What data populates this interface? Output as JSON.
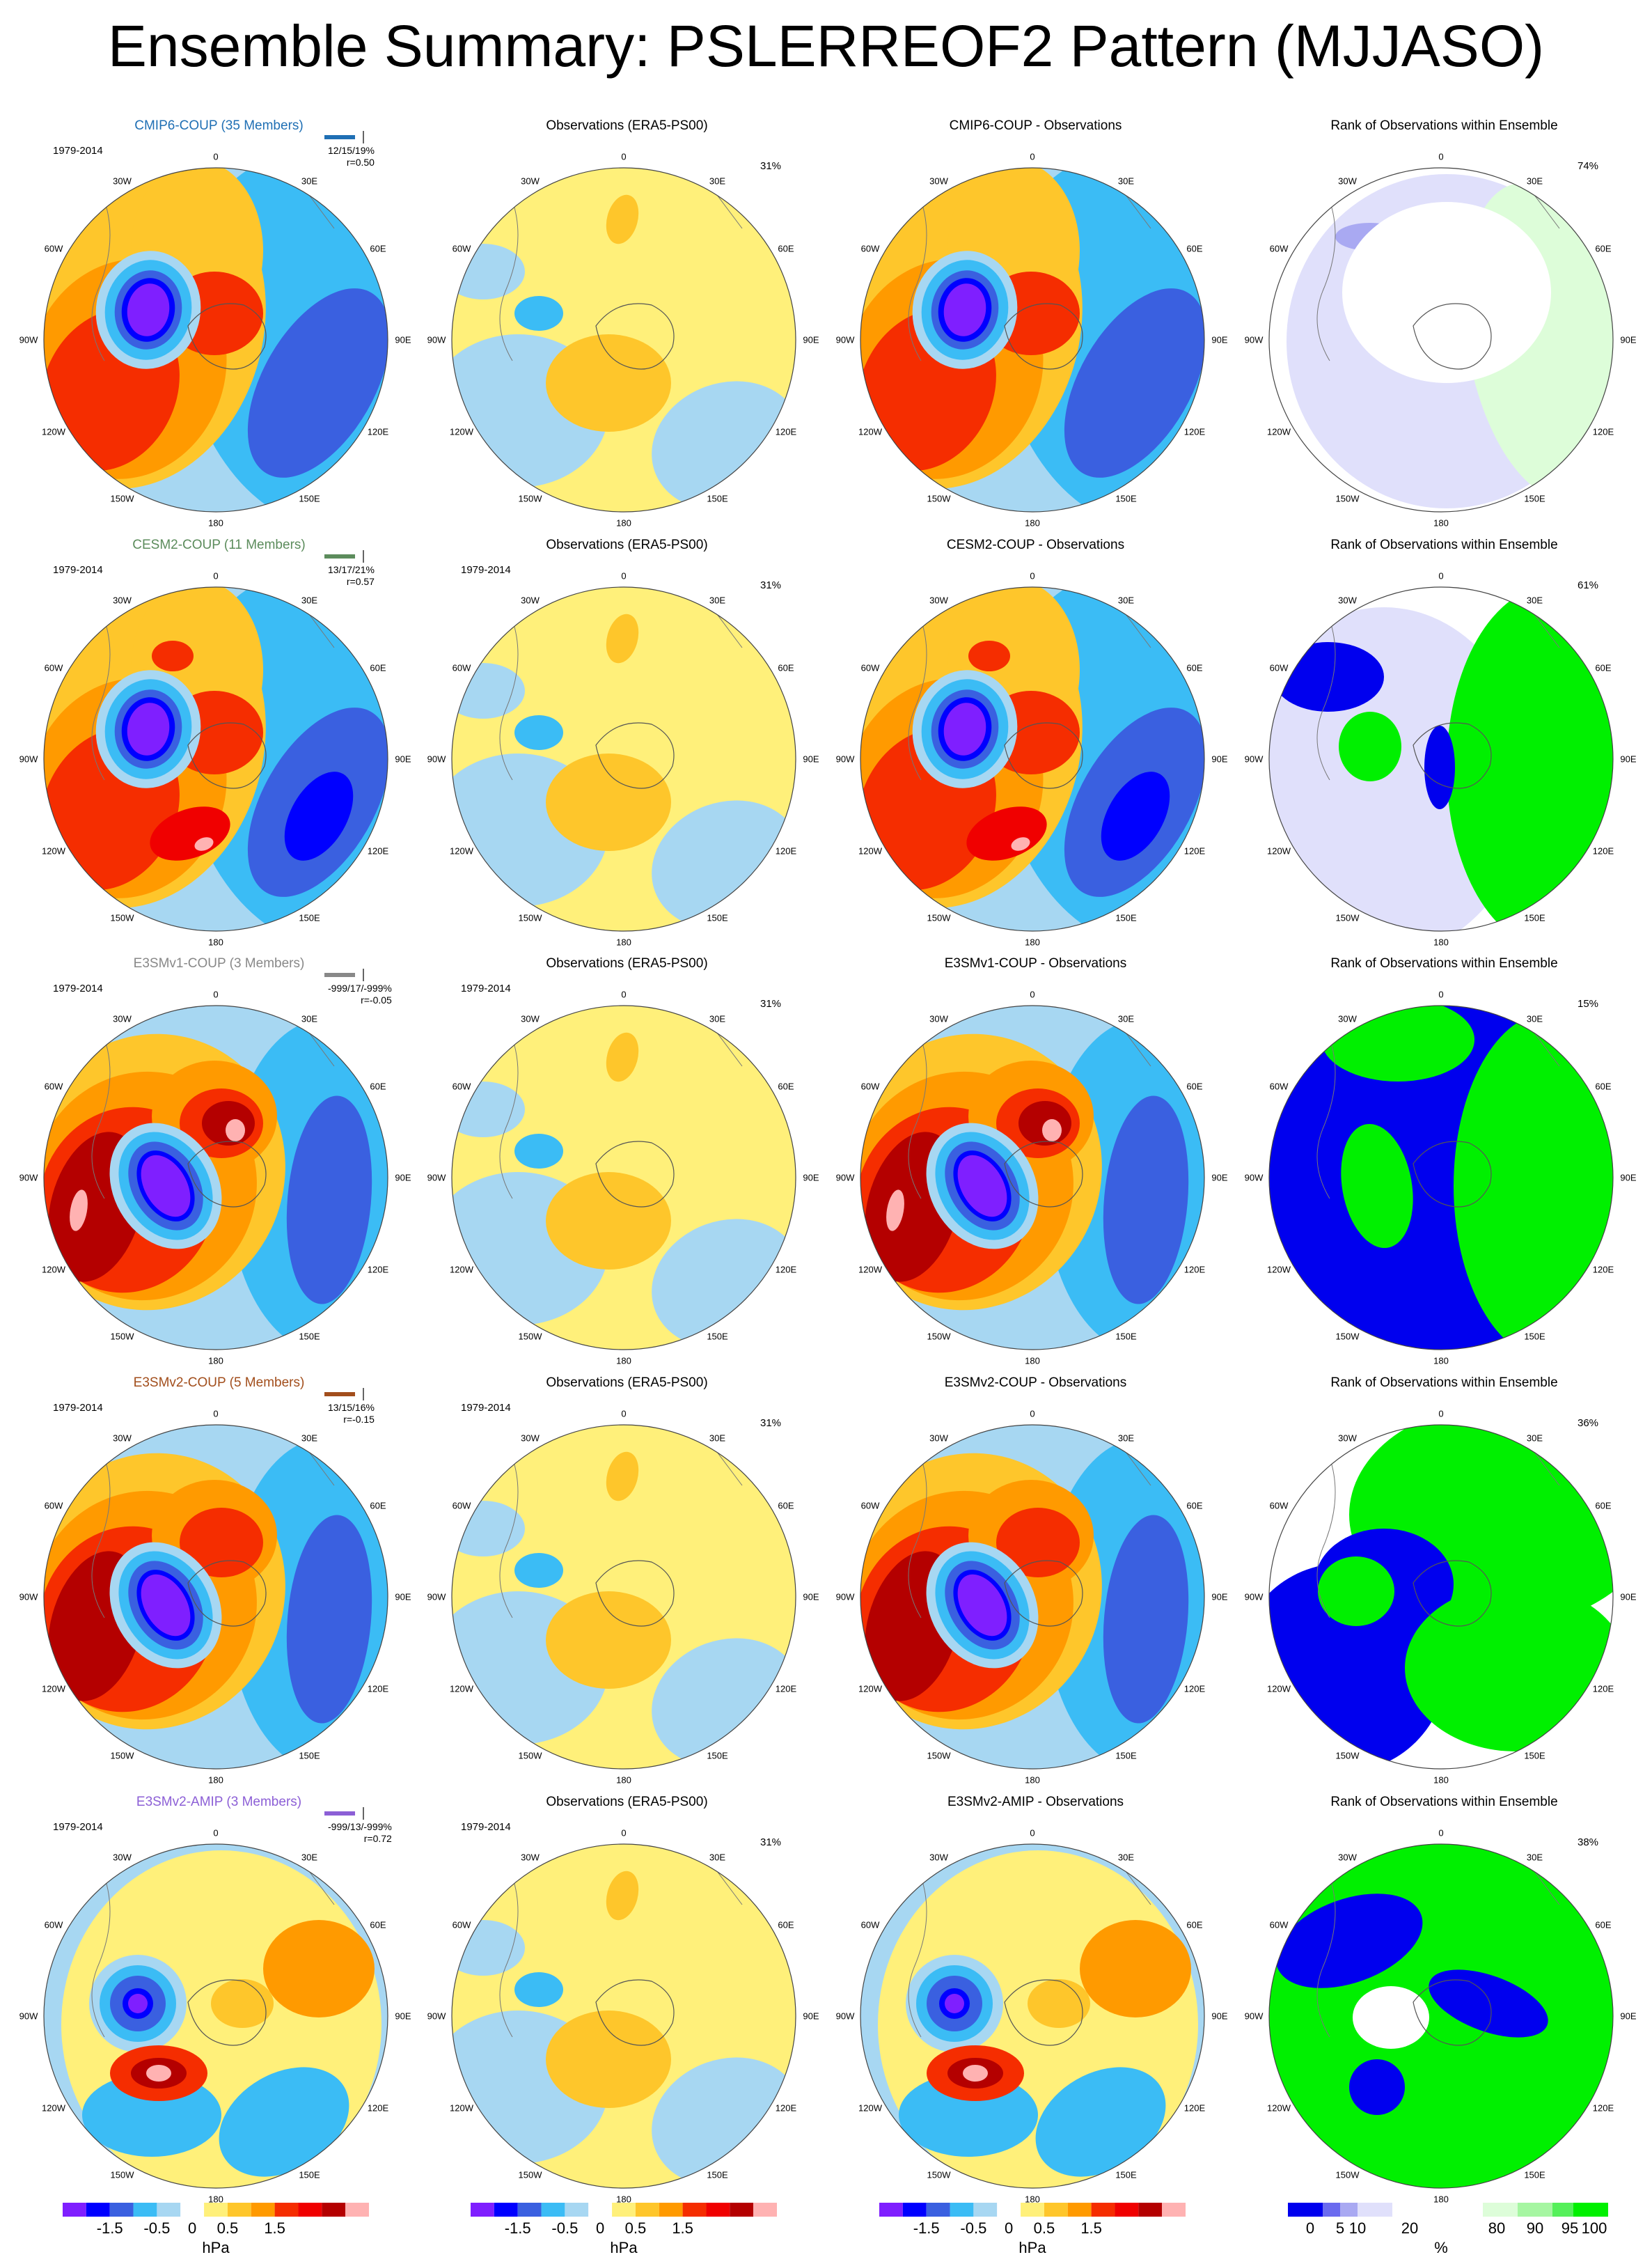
{
  "title": "Ensemble Summary: PSLERREOF2 Pattern (MJJASO)",
  "colors": {
    "levels": [
      "#7f1fff",
      "#0000ff",
      "#3a60e0",
      "#3bbcf5",
      "#a7d7f2",
      "#ffffff",
      "#fff07a",
      "#fec62b",
      "#ff9a00",
      "#f52d00",
      "#f00000",
      "#b40000",
      "#ffb2b2"
    ],
    "rank": [
      "#0000ee",
      "#6b6bef",
      "#a9a9f2",
      "#e0e0fb",
      "#ffffff",
      "#ddfdd9",
      "#a6f6a2",
      "#55f05a",
      "#00f000"
    ],
    "model_title_colors": {
      "CMIP6-COUP": "#1f6fb4",
      "CESM2-COUP": "#5c8c5c",
      "E3SMv1-COUP": "#888888",
      "E3SMv2-COUP": "#a24e1c",
      "E3SMv2-AMIP": "#8c5fd6"
    }
  },
  "longitude_labels": [
    "0",
    "30E",
    "60E",
    "90E",
    "120E",
    "150E",
    "180",
    "150W",
    "120W",
    "90W",
    "60W",
    "30W"
  ],
  "rows": [
    {
      "model_panel": {
        "title": "CMIP6-COUP (35 Members)",
        "period": "1979-2014",
        "stats_line1": "12/15/19%",
        "stats_line2": "r=0.50"
      },
      "obs_panel": {
        "title": "Observations (ERA5-PS00)",
        "pct": "31%"
      },
      "diff_panel": {
        "title": "CMIP6-COUP - Observations"
      },
      "rank_panel": {
        "title": "Rank of Observations within Ensemble",
        "pct": "74%"
      }
    },
    {
      "model_panel": {
        "title": "CESM2-COUP (11 Members)",
        "period": "1979-2014",
        "stats_line1": "13/17/21%",
        "stats_line2": "r=0.57"
      },
      "obs_panel": {
        "title": "Observations (ERA5-PS00)",
        "period": "1979-2014",
        "pct": "31%"
      },
      "diff_panel": {
        "title": "CESM2-COUP - Observations"
      },
      "rank_panel": {
        "title": "Rank of Observations within Ensemble",
        "pct": "61%"
      }
    },
    {
      "model_panel": {
        "title": "E3SMv1-COUP (3 Members)",
        "period": "1979-2014",
        "stats_line1": "-999/17/-999%",
        "stats_line2": "r=-0.05"
      },
      "obs_panel": {
        "title": "Observations (ERA5-PS00)",
        "period": "1979-2014",
        "pct": "31%"
      },
      "diff_panel": {
        "title": "E3SMv1-COUP - Observations"
      },
      "rank_panel": {
        "title": "Rank of Observations within Ensemble",
        "pct": "15%"
      }
    },
    {
      "model_panel": {
        "title": "E3SMv2-COUP (5 Members)",
        "period": "1979-2014",
        "stats_line1": "13/15/16%",
        "stats_line2": "r=-0.15"
      },
      "obs_panel": {
        "title": "Observations (ERA5-PS00)",
        "period": "1979-2014",
        "pct": "31%"
      },
      "diff_panel": {
        "title": "E3SMv2-COUP - Observations"
      },
      "rank_panel": {
        "title": "Rank of Observations within Ensemble",
        "pct": "36%"
      }
    },
    {
      "model_panel": {
        "title": "E3SMv2-AMIP (3 Members)",
        "period": "1979-2014",
        "stats_line1": "-999/13/-999%",
        "stats_line2": "r=0.72"
      },
      "obs_panel": {
        "title": "Observations (ERA5-PS00)",
        "period": "1979-2014",
        "pct": "31%"
      },
      "diff_panel": {
        "title": "E3SMv2-AMIP - Observations"
      },
      "rank_panel": {
        "title": "Rank of Observations within Ensemble",
        "pct": "38%"
      }
    }
  ],
  "colorbars": {
    "hpa_ticks": [
      "-1.5",
      "-0.5",
      "0",
      "0.5",
      "1.5"
    ],
    "hpa_unit": "hPa",
    "rank_ticks": [
      "0",
      "5",
      "10",
      "20",
      "80",
      "90",
      "95",
      "100"
    ],
    "rank_unit": "%"
  },
  "chart_data": {
    "type": "heatmap",
    "title": "Ensemble Summary: PSLERREOF2 Pattern (MJJASO)",
    "projection": "south-polar-stereographic",
    "columns": [
      "model ensemble mean pattern",
      "Observations (ERA5-PS00)",
      "model - Observations",
      "Rank of Observations within Ensemble"
    ],
    "models": [
      "CMIP6-COUP",
      "CESM2-COUP",
      "E3SMv1-COUP",
      "E3SMv2-COUP",
      "E3SMv2-AMIP"
    ],
    "members": [
      35,
      11,
      3,
      5,
      3
    ],
    "period": "1979-2014",
    "pattern_correlation": [
      0.5,
      0.57,
      -0.05,
      -0.15,
      0.72
    ],
    "explained_variance_pct": [
      "12/15/19",
      "13/17/21",
      "-999/17/-999",
      "13/15/16",
      "-999/13/-999"
    ],
    "observed_variance_pct": 31,
    "rank_area_pct": [
      74,
      61,
      15,
      36,
      38
    ],
    "unit": "hPa",
    "colorbar_ticks_hpa": [
      -1.5,
      -0.5,
      0,
      0.5,
      1.5
    ],
    "colorbar_ticks_rank": [
      0,
      5,
      10,
      20,
      80,
      90,
      95,
      100
    ]
  }
}
